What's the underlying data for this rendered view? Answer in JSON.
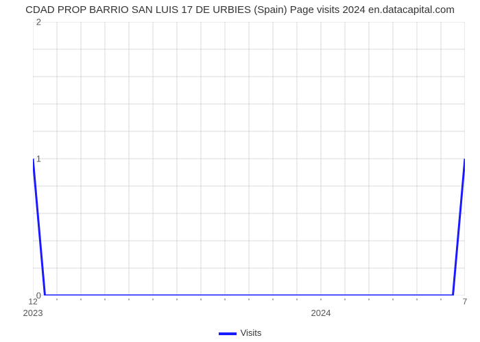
{
  "title": "CDAD PROP BARRIO SAN LUIS 17 DE URBIES (Spain) Page visits 2024 en.datacapital.com",
  "chart": {
    "type": "line",
    "background_color": "#ffffff",
    "grid_color": "#d9d9d9",
    "grid_line_width": 1,
    "border_color": "#d9d9d9",
    "line_color": "#1a1aff",
    "line_width": 3,
    "ylim": [
      0,
      2
    ],
    "ytick_step": 1,
    "y_minor_ticks": 4,
    "yticks": [
      0,
      1,
      2
    ],
    "xlim_months": [
      0,
      18
    ],
    "x_major_count": 18,
    "x_first_label": "12",
    "x_last_label": "7",
    "x_year_labels": [
      {
        "pos_month": 0,
        "text": "2023"
      },
      {
        "pos_month": 12,
        "text": "2024"
      }
    ],
    "x_minor_tick_height": 3,
    "series": {
      "name": "Visits",
      "points_months_values": [
        [
          0,
          1.0
        ],
        [
          0.5,
          0.0
        ],
        [
          17.5,
          0.0
        ],
        [
          18,
          1.0
        ]
      ]
    },
    "title_fontsize": 15,
    "axis_label_fontsize": 13,
    "tick_label_fontsize": 12,
    "legend_fontsize": 13
  }
}
